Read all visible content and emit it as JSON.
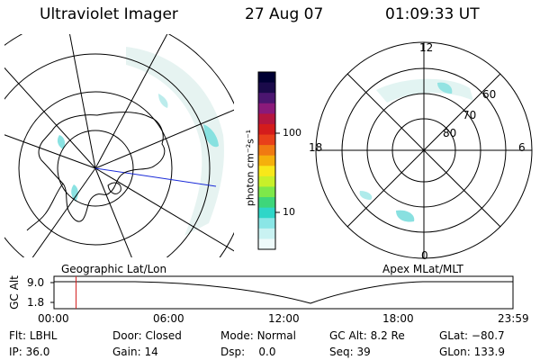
{
  "header": {
    "instrument": "Ultraviolet Imager",
    "date": "27 Aug 07",
    "time": "01:09:33 UT"
  },
  "left_panel": {
    "caption": "Geographic Lat/Lon"
  },
  "right_panel": {
    "caption": "Apex MLat/MLT",
    "mlt_labels": [
      "12",
      "18",
      "6",
      "0"
    ],
    "lat_labels": [
      "60",
      "70",
      "80"
    ]
  },
  "colorbar": {
    "unit_label": "photon cm⁻²s⁻¹",
    "tick_labels": [
      "100",
      "10"
    ],
    "colors": [
      "#000033",
      "#1a0a4a",
      "#4b1670",
      "#8a1a7a",
      "#b5163f",
      "#d41c1c",
      "#e8401a",
      "#f07a12",
      "#f5b00c",
      "#f8e81a",
      "#c8f02a",
      "#7ee84a",
      "#3ed67a",
      "#2fd6c8",
      "#8ae6e6",
      "#c9f2f2",
      "#eefafa"
    ]
  },
  "timeline": {
    "y_axis_label": "GC Alt",
    "y_ticks": [
      "9.0",
      "1.8"
    ],
    "x_ticks": [
      "00:00",
      "06:00",
      "12:00",
      "18:00",
      "23:59"
    ],
    "current_time_fraction": 0.048
  },
  "status": {
    "row1": [
      {
        "label": "Flt:",
        "value": "LBHL"
      },
      {
        "label": "Door:",
        "value": "Closed"
      },
      {
        "label": "Mode:",
        "value": "Normal"
      },
      {
        "label": "GC Alt:",
        "value": "8.2 Re"
      },
      {
        "label": "GLat:",
        "value": "−80.7"
      }
    ],
    "row2": [
      {
        "label": "IP:",
        "value": "36.0"
      },
      {
        "label": "Gain:",
        "value": "14"
      },
      {
        "label": "Dsp:",
        "value": "0.0"
      },
      {
        "label": "Seq:",
        "value": "39"
      },
      {
        "label": "GLon:",
        "value": "133.9"
      }
    ]
  }
}
